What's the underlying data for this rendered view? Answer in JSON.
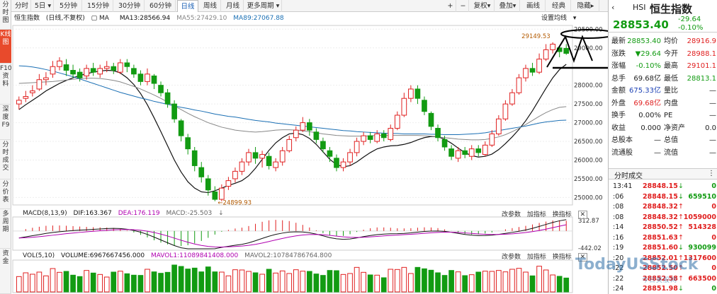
{
  "left_tabs": [
    {
      "label": "分时图"
    },
    {
      "label": "K线图"
    },
    {
      "label": "F10资料"
    },
    {
      "label": "深度F9"
    },
    {
      "label": "分时成交"
    },
    {
      "label": "分价表"
    },
    {
      "label": "多周期"
    },
    {
      "label": "资金"
    }
  ],
  "toolbar": {
    "tabs": [
      "分时",
      "5日",
      "5分钟",
      "15分钟",
      "30分钟",
      "60分钟",
      "日线",
      "周线",
      "月线",
      "更多周期"
    ],
    "active": "日线",
    "right": [
      "+",
      "−",
      "复权",
      "叠加",
      "画线",
      "经典",
      "隐藏"
    ]
  },
  "header": {
    "name": "恒生指数",
    "mode": "(日线,不复权)",
    "ma_label": "MA",
    "ma13": "MA13:28566.94",
    "ma55": "MA55:27429.10",
    "ma89": "MA89:27067.88",
    "settings": "设置均线"
  },
  "price_axis": [
    "29500.00",
    "29000.00",
    "28000.00",
    "27500.00",
    "27000.00",
    "26500.00",
    "26000.00",
    "25500.00",
    "25000.00"
  ],
  "annotations": {
    "high": "29149.53",
    "low": "24899.93"
  },
  "macd": {
    "label": "MACD(8,13,9)",
    "dif": "DIF:163.367",
    "dea": "DEA:176.119",
    "macd": "MACD:-25.503",
    "axis_top": "312.87",
    "axis_bottom": "-442.02",
    "tools": [
      "改参数",
      "加指标",
      "换指标"
    ]
  },
  "vol": {
    "label": "VOL(5,10)",
    "volume": "VOLUME:6967667456.000",
    "mavol1": "MAVOL1:11089841408.000",
    "mavol2": "MAVOL2:10784786764.800",
    "tools": [
      "改参数",
      "加指标",
      "换指标"
    ]
  },
  "quote": {
    "code": "HSI",
    "name": "恒生指数",
    "price": "28853.40",
    "change": "-29.64",
    "pct": "-0.10%"
  },
  "stats": [
    {
      "l1": "最新",
      "v1": "28853.40",
      "c1": "dn",
      "l2": "均价",
      "v2": "28916.9",
      "c2": "up"
    },
    {
      "l1": "涨跌",
      "v1": "▼29.64",
      "c1": "dn",
      "l2": "今开",
      "v2": "28988.1",
      "c2": "up"
    },
    {
      "l1": "涨幅",
      "v1": "-0.10%",
      "c1": "dn",
      "l2": "最高",
      "v2": "29101.1",
      "c2": "up"
    },
    {
      "l1": "总手",
      "v1": "69.68亿",
      "c1": "",
      "l2": "最低",
      "v2": "28813.1",
      "c2": "dn"
    },
    {
      "l1": "金额",
      "v1": "675.33亿",
      "c1": "bl",
      "l2": "量比",
      "v2": "—",
      "c2": ""
    },
    {
      "l1": "外盘",
      "v1": "69.68亿",
      "c1": "up",
      "l2": "内盘",
      "v2": "—",
      "c2": ""
    },
    {
      "l1": "换手",
      "v1": "0.00%",
      "c1": "",
      "l2": "PE",
      "v2": "—",
      "c2": ""
    },
    {
      "l1": "收益",
      "v1": "0.000",
      "c1": "",
      "l2": "净资产",
      "v2": "0.0",
      "c2": ""
    },
    {
      "l1": "总股本",
      "v1": "—",
      "c1": "",
      "l2": "总值",
      "v2": "—",
      "c2": ""
    },
    {
      "l1": "流通股",
      "v1": "—",
      "c1": "",
      "l2": "流值",
      "v2": "—",
      "c2": ""
    }
  ],
  "ticks_title": "分时成交",
  "ticks": [
    {
      "t": "13:41",
      "p": "28848.15",
      "a": "↓",
      "v": "0"
    },
    {
      "t": ":06",
      "p": "28848.15",
      "a": "↓",
      "v": "659510"
    },
    {
      "t": ":08",
      "p": "28848.32",
      "a": "↑",
      "v": "0"
    },
    {
      "t": ":08",
      "p": "28848.32",
      "a": "↑",
      "v": "1059000"
    },
    {
      "t": ":14",
      "p": "28850.52",
      "a": "↑",
      "v": "514328"
    },
    {
      "t": ":16",
      "p": "28851.63",
      "a": "↑",
      "v": "0"
    },
    {
      "t": ":19",
      "p": "28851.60",
      "a": "↓",
      "v": "930099"
    },
    {
      "t": ":20",
      "p": "28852.01",
      "a": "↑",
      "v": "1317600"
    },
    {
      "t": ":22",
      "p": "28852.50",
      "a": "↑",
      "v": "0"
    },
    {
      "t": ":22",
      "p": "28852.58",
      "a": "↑",
      "v": "663500"
    },
    {
      "t": ":24",
      "p": "28851.98",
      "a": "↓",
      "v": "0"
    }
  ],
  "watermark": {
    "main": "TodayUSStock",
    "sub": "今日美股网"
  },
  "colors": {
    "up": "#e02020",
    "down": "#129b12",
    "accent": "#e84a2c",
    "ma13": "#111111",
    "ma55": "#888888",
    "ma89": "#1a6fb4"
  },
  "chart_data": {
    "type": "candlestick",
    "title": "恒生指数 (日线,不复权)",
    "ylim": [
      24800,
      29600
    ],
    "y_ticks": [
      25000,
      25500,
      26000,
      26500,
      27000,
      27500,
      28000,
      29000,
      29500
    ],
    "series": [
      {
        "name": "MA13",
        "values": [
          27350,
          27480,
          27600,
          27720,
          27850,
          27950,
          28050,
          28130,
          28200,
          28260,
          28310,
          28350,
          28380,
          28400,
          28390,
          28330,
          28200,
          28020,
          27780,
          27480,
          27130,
          26760,
          26380,
          26000,
          25680,
          25420,
          25250,
          25150,
          25130,
          25180,
          25250,
          25320,
          25380,
          25450,
          25580,
          25780,
          26020,
          26260,
          26460,
          26600,
          26700,
          26720,
          26680,
          26580,
          26420,
          26220,
          26020,
          25880,
          25820,
          25850,
          25950,
          26080,
          26200,
          26300,
          26350,
          26380,
          26390,
          26420,
          26470,
          26540,
          26600,
          26630,
          26620,
          26560,
          26450,
          26320,
          26200,
          26120,
          26080,
          26100,
          26160,
          26280,
          26440,
          26620,
          26820,
          27050,
          27320,
          27620,
          27920,
          28200,
          28420,
          28560
        ]
      },
      {
        "name": "MA55",
        "values": [
          28050,
          28060,
          28070,
          28080,
          28090,
          28100,
          28120,
          28140,
          28160,
          28180,
          28190,
          28190,
          28180,
          28160,
          28130,
          28090,
          28030,
          27970,
          27900,
          27820,
          27740,
          27650,
          27550,
          27450,
          27350,
          27250,
          27160,
          27080,
          27000,
          26940,
          26880,
          26840,
          26800,
          26780,
          26760,
          26750,
          26760,
          26780,
          26800,
          26810,
          26810,
          26800,
          26780,
          26760,
          26730,
          26700,
          26680,
          26660,
          26650,
          26640,
          26640,
          26640,
          26650,
          26660,
          26660,
          26660,
          26660,
          26660,
          26660,
          26660,
          26650,
          26640,
          26620,
          26600,
          26580,
          26560,
          26550,
          26540,
          26540,
          26550,
          26580,
          26620,
          26680,
          26760,
          26850,
          26950,
          27060,
          27170,
          27270,
          27350,
          27410,
          27430
        ]
      },
      {
        "name": "MA89",
        "values": [
          28520,
          28510,
          28490,
          28460,
          28420,
          28380,
          28330,
          28280,
          28230,
          28170,
          28110,
          28050,
          27990,
          27930,
          27870,
          27810,
          27760,
          27710,
          27660,
          27620,
          27570,
          27530,
          27490,
          27450,
          27410,
          27380,
          27340,
          27310,
          27270,
          27230,
          27200,
          27170,
          27150,
          27120,
          27090,
          27060,
          27040,
          27020,
          26990,
          26970,
          26950,
          26930,
          26910,
          26890,
          26870,
          26850,
          26830,
          26810,
          26790,
          26780,
          26760,
          26750,
          26740,
          26730,
          26720,
          26710,
          26710,
          26700,
          26700,
          26700,
          26700,
          26690,
          26690,
          26680,
          26680,
          26680,
          26690,
          26700,
          26710,
          26730,
          26760,
          26790,
          26820,
          26850,
          26880,
          26910,
          26950,
          26990,
          27020,
          27040,
          27060,
          27068
        ]
      }
    ],
    "candles": [
      [
        27500,
        27600,
        27700,
        27350
      ],
      [
        27650,
        27700,
        27850,
        27550
      ],
      [
        27800,
        27850,
        28000,
        27700
      ],
      [
        27900,
        28150,
        28300,
        27850
      ],
      [
        28150,
        28200,
        28350,
        28000
      ],
      [
        28300,
        28500,
        28650,
        28200
      ],
      [
        28500,
        28650,
        28750,
        28400
      ],
      [
        28550,
        28400,
        28700,
        28250
      ],
      [
        28400,
        28300,
        28550,
        28200
      ],
      [
        28350,
        28200,
        28450,
        28100
      ],
      [
        28250,
        28450,
        28550,
        28150
      ],
      [
        28450,
        28350,
        28600,
        28250
      ],
      [
        28300,
        28450,
        28550,
        28200
      ],
      [
        28450,
        28500,
        28650,
        28350
      ],
      [
        28500,
        28400,
        28600,
        28300
      ],
      [
        28350,
        28600,
        28700,
        28300
      ],
      [
        28600,
        28500,
        28700,
        28350
      ],
      [
        28450,
        28300,
        28550,
        28200
      ],
      [
        28300,
        28100,
        28400,
        28000
      ],
      [
        28100,
        28300,
        28450,
        28000
      ],
      [
        28250,
        28050,
        28300,
        27900
      ],
      [
        28000,
        27800,
        28100,
        27700
      ],
      [
        27800,
        27500,
        27900,
        27400
      ],
      [
        27500,
        27100,
        27600,
        27000
      ],
      [
        27050,
        26650,
        27100,
        26500
      ],
      [
        26600,
        26300,
        26700,
        26150
      ],
      [
        26250,
        25850,
        26350,
        25700
      ],
      [
        25800,
        25550,
        25950,
        25400
      ],
      [
        25500,
        25200,
        25600,
        25050
      ],
      [
        25150,
        24950,
        25300,
        24900
      ],
      [
        24950,
        25250,
        25350,
        24900
      ],
      [
        25300,
        25450,
        25550,
        25200
      ],
      [
        25500,
        25700,
        25800,
        25400
      ],
      [
        25700,
        25950,
        26050,
        25600
      ],
      [
        25950,
        26200,
        26300,
        25850
      ],
      [
        26200,
        26050,
        26350,
        25900
      ],
      [
        26050,
        26150,
        26250,
        25800
      ],
      [
        26100,
        25850,
        26200,
        25750
      ],
      [
        25800,
        25950,
        26050,
        25700
      ],
      [
        25950,
        26250,
        26350,
        25850
      ],
      [
        26250,
        26550,
        26650,
        26200
      ],
      [
        26600,
        26800,
        26900,
        26500
      ],
      [
        26800,
        27000,
        27150,
        26750
      ],
      [
        27000,
        26800,
        27100,
        26650
      ],
      [
        26750,
        26550,
        26850,
        26450
      ],
      [
        26500,
        26300,
        26600,
        26200
      ],
      [
        26250,
        26100,
        26350,
        25950
      ],
      [
        26050,
        25800,
        26150,
        25700
      ],
      [
        25800,
        25950,
        26050,
        25700
      ],
      [
        25950,
        26200,
        26300,
        25850
      ],
      [
        26200,
        26500,
        26600,
        26100
      ],
      [
        26500,
        26650,
        26750,
        26400
      ],
      [
        26650,
        26550,
        26750,
        26450
      ],
      [
        26500,
        26700,
        26800,
        26450
      ],
      [
        26700,
        26600,
        26800,
        26500
      ],
      [
        26550,
        26850,
        26950,
        26500
      ],
      [
        26850,
        27200,
        27300,
        26800
      ],
      [
        27200,
        27650,
        27800,
        27150
      ],
      [
        27650,
        27900,
        28000,
        27550
      ],
      [
        27900,
        27650,
        28000,
        27500
      ],
      [
        27600,
        27300,
        27700,
        27200
      ],
      [
        27250,
        26900,
        27300,
        26800
      ],
      [
        26850,
        26600,
        26950,
        26500
      ],
      [
        26550,
        26350,
        26650,
        26250
      ],
      [
        26300,
        26100,
        26400,
        26000
      ],
      [
        26050,
        26250,
        26350,
        25950
      ],
      [
        26250,
        26150,
        26350,
        26050
      ],
      [
        26100,
        26300,
        26400,
        26000
      ],
      [
        26300,
        26200,
        26400,
        26100
      ],
      [
        26150,
        26400,
        26500,
        26100
      ],
      [
        26400,
        26700,
        26800,
        26350
      ],
      [
        26700,
        27100,
        27200,
        26650
      ],
      [
        27100,
        27500,
        27600,
        27050
      ],
      [
        27500,
        27800,
        27900,
        27450
      ],
      [
        27800,
        28200,
        28300,
        27750
      ],
      [
        28200,
        28450,
        28550,
        28100
      ],
      [
        28450,
        28350,
        28600,
        28250
      ],
      [
        28350,
        28700,
        28850,
        28300
      ],
      [
        28700,
        28950,
        29100,
        28650
      ],
      [
        28950,
        29100,
        29149.53,
        28850
      ],
      [
        29000,
        28900,
        29050,
        28750
      ],
      [
        28988.1,
        28853.4,
        29101.1,
        28813.1
      ]
    ],
    "macd": {
      "dif_last": 163.367,
      "dea_last": 176.119,
      "macd_last": -25.503,
      "range": [
        -442.02,
        312.87
      ]
    },
    "volume": {
      "last": 6967667456,
      "mavol1": 11089841408,
      "mavol2": 10784786764.8
    }
  }
}
